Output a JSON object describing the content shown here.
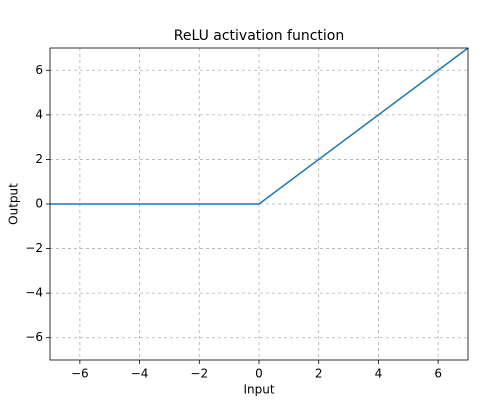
{
  "chart_data": {
    "type": "line",
    "title": "ReLU activation function",
    "xlabel": "Input",
    "ylabel": "Output",
    "x": [
      -7,
      0,
      7
    ],
    "series": [
      {
        "color": "#1f77b4",
        "values": [
          0,
          0,
          7
        ]
      }
    ],
    "xlim": [
      -7,
      7
    ],
    "ylim": [
      -7,
      7
    ],
    "xticks": [
      {
        "value": -6,
        "label": "−6"
      },
      {
        "value": -4,
        "label": "−4"
      },
      {
        "value": -2,
        "label": "−2"
      },
      0,
      2,
      4,
      6
    ],
    "yticks": [
      {
        "value": -6,
        "label": "−6"
      },
      {
        "value": -4,
        "label": "−4"
      },
      {
        "value": -2,
        "label": "−2"
      },
      0,
      2,
      4,
      6
    ],
    "grid": true
  }
}
